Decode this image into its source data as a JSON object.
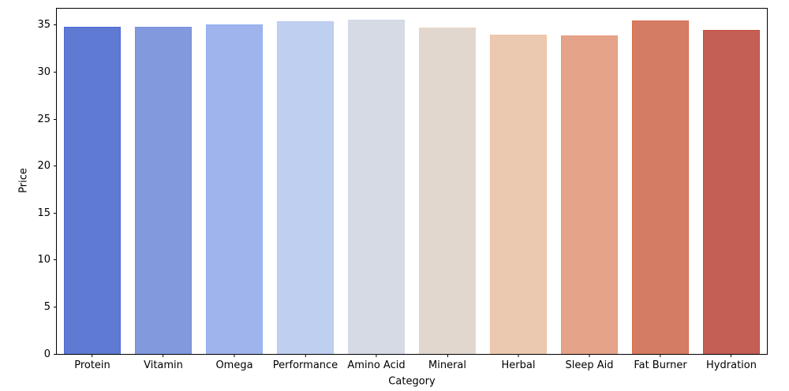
{
  "chart_data": {
    "type": "bar",
    "title": "",
    "xlabel": "Category",
    "ylabel": "Price",
    "categories": [
      "Protein",
      "Vitamin",
      "Omega",
      "Performance",
      "Amino Acid",
      "Mineral",
      "Herbal",
      "Sleep Aid",
      "Fat Burner",
      "Hydration"
    ],
    "values": [
      34.8,
      34.8,
      35.1,
      35.4,
      35.6,
      34.7,
      34.0,
      33.9,
      35.5,
      34.5
    ],
    "bar_face_colors": [
      "#5f7ad2",
      "#8299de",
      "#9fb4ec",
      "#bfcfef",
      "#d5dae4",
      "#e2d7cf",
      "#ebc9b1",
      "#e5a489",
      "#d57c64",
      "#c45f54"
    ],
    "bar_edge_colors": [
      "#4c68d6",
      "#7390e2",
      "#92adf0",
      "#b6c9f4",
      "#d1d8e9",
      "#e6d5c5",
      "#f0c2a2",
      "#eb9876",
      "#db6b4d",
      "#c94b3e"
    ],
    "ylim": [
      0,
      36.75
    ],
    "yticks": [
      0,
      5,
      10,
      15,
      20,
      25,
      30,
      35
    ],
    "grid": false,
    "legend": false,
    "bar_relative_width": 0.8,
    "axis_color": "#000000",
    "text_color": "#000000",
    "background_color": "#ffffff"
  }
}
